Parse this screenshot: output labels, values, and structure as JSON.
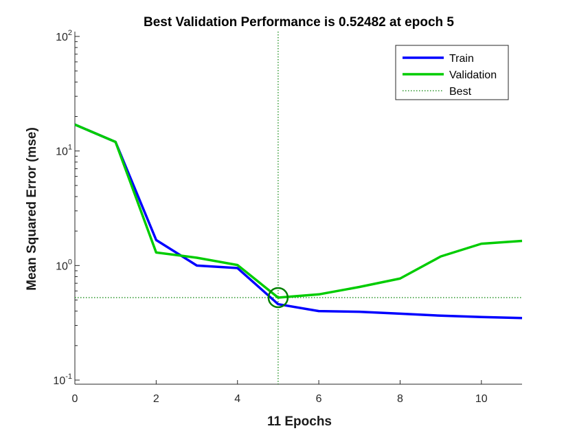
{
  "chart_data": {
    "type": "line",
    "title": "Best Validation Performance is 0.52482 at epoch 5",
    "xlabel": "11 Epochs",
    "ylabel": "Mean Squared Error  (mse)",
    "xlim": [
      0,
      11
    ],
    "ylim": [
      0.1,
      100
    ],
    "yscale": "log",
    "grid": false,
    "legend_position": "top-right",
    "x_ticks": [
      "0",
      "2",
      "4",
      "6",
      "8",
      "10"
    ],
    "x_tick_values": [
      0,
      2,
      4,
      6,
      8,
      10
    ],
    "y_ticks": [
      {
        "value": 0.1,
        "base": "10",
        "exp": "-1"
      },
      {
        "value": 1,
        "base": "10",
        "exp": "0"
      },
      {
        "value": 10,
        "base": "10",
        "exp": "1"
      },
      {
        "value": 100,
        "base": "10",
        "exp": "2"
      }
    ],
    "x": [
      0,
      1,
      2,
      3,
      4,
      5,
      6,
      7,
      8,
      9,
      10,
      11
    ],
    "series": [
      {
        "name": "Train",
        "color": "#0000ff",
        "style": "solid",
        "values": [
          17,
          12,
          1.67,
          1.0,
          0.95,
          0.46,
          0.4,
          0.395,
          0.38,
          0.365,
          0.355,
          0.348
        ]
      },
      {
        "name": "Validation",
        "color": "#00cc00",
        "style": "solid",
        "values": [
          17,
          12,
          1.3,
          1.17,
          1.01,
          0.52482,
          0.56,
          0.65,
          0.77,
          1.2,
          1.55,
          1.64
        ]
      },
      {
        "name": "Best",
        "color": "#008000",
        "style": "dotted"
      }
    ],
    "best": {
      "epoch": 5,
      "value": 0.52482,
      "marker": "circle",
      "color": "#008000"
    }
  }
}
